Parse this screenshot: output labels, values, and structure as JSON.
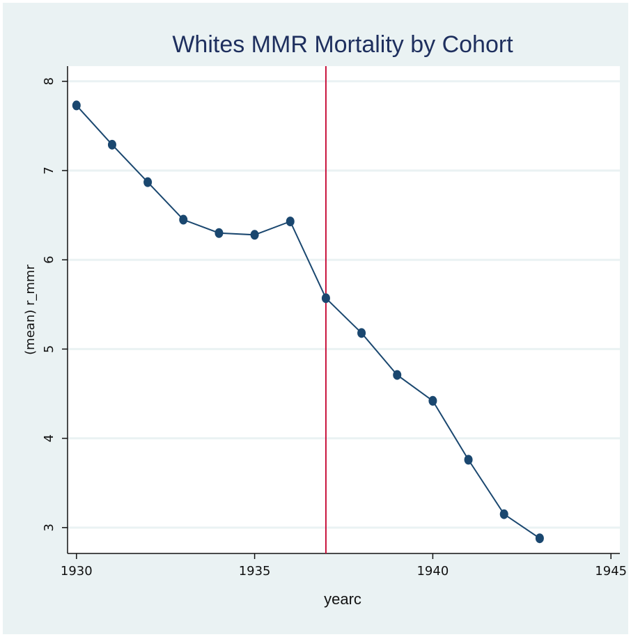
{
  "chart_data": {
    "type": "line",
    "title": "Whites MMR Mortality by Cohort",
    "x_label": "yearc",
    "y_label": "(mean) r_mmr",
    "x": [
      1930,
      1931,
      1932,
      1933,
      1934,
      1935,
      1936,
      1937,
      1938,
      1939,
      1940,
      1941,
      1942,
      1943
    ],
    "series": [
      {
        "name": "(mean) r_mmr",
        "color": "#1a476f",
        "values": [
          7.73,
          7.29,
          6.87,
          6.45,
          6.3,
          6.28,
          6.43,
          5.57,
          5.18,
          4.71,
          4.42,
          3.76,
          3.15,
          2.88
        ]
      }
    ],
    "xlim": [
      1929.75,
      1945.25
    ],
    "xticks": [
      1930,
      1935,
      1940,
      1945
    ],
    "ylim": [
      2.71,
      8.17
    ],
    "yticks": [
      3,
      4,
      5,
      6,
      7,
      8
    ],
    "grid": true,
    "xline": 1937,
    "xline_color": "#c8103a"
  }
}
